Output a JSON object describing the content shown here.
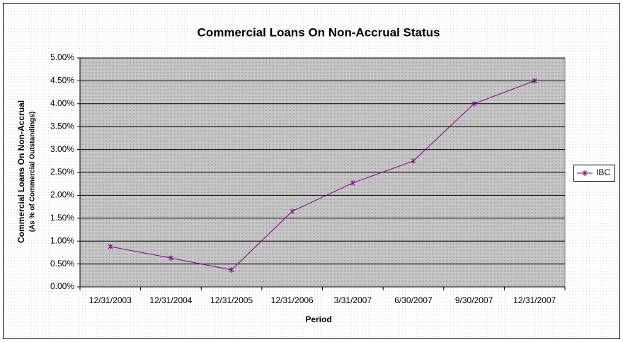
{
  "chart_data": {
    "type": "line",
    "title": "Commercial Loans On Non-Accrual Status",
    "xlabel": "Period",
    "ylabel": "Commercial Loans On Non-Accrual",
    "ylabel_note": "(As % of Commercial Outstandings)",
    "categories": [
      "12/31/2003",
      "12/31/2004",
      "12/31/2005",
      "12/31/2006",
      "3/31/2007",
      "6/30/2007",
      "9/30/2007",
      "12/31/2007"
    ],
    "series": [
      {
        "name": "IBC",
        "color": "#800080",
        "values": [
          0.88,
          0.63,
          0.37,
          1.65,
          2.27,
          2.75,
          4.0,
          4.5
        ]
      }
    ],
    "ylim": [
      0,
      5
    ],
    "yticks": [
      {
        "value": 0,
        "label": "0.00%"
      },
      {
        "value": 0.5,
        "label": "0.50%"
      },
      {
        "value": 1,
        "label": "1.00%"
      },
      {
        "value": 1.5,
        "label": "1.50%"
      },
      {
        "value": 2,
        "label": "2.00%"
      },
      {
        "value": 2.5,
        "label": "2.50%"
      },
      {
        "value": 3,
        "label": "3.00%"
      },
      {
        "value": 3.5,
        "label": "3.50%"
      },
      {
        "value": 4,
        "label": "4.00%"
      },
      {
        "value": 4.5,
        "label": "4.50%"
      },
      {
        "value": 5,
        "label": "5.00%"
      }
    ],
    "grid": true,
    "legend": "right"
  }
}
